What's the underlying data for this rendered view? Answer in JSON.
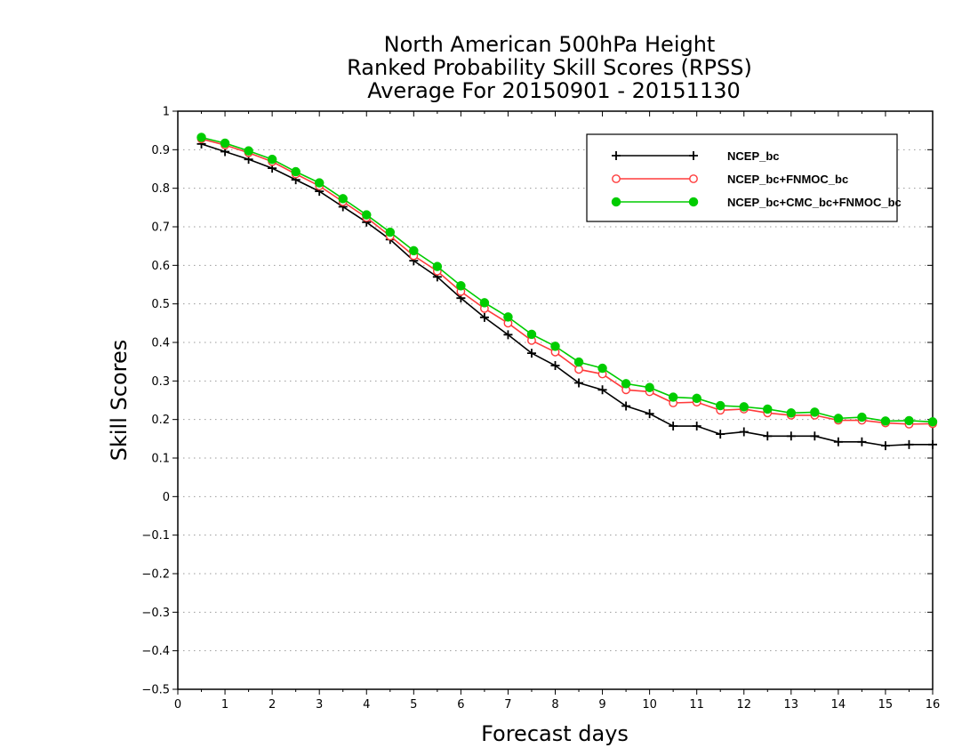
{
  "chart_data": {
    "type": "line",
    "title": [
      "North American 500hPa Height",
      "Ranked Probability Skill Scores (RPSS)",
      "Average For 20150901 - 20151130"
    ],
    "xlabel": "Forecast days",
    "ylabel": "Skill Scores",
    "xlim": [
      0,
      16
    ],
    "ylim": [
      -0.5,
      1
    ],
    "xticks": [
      "0",
      "1",
      "2",
      "3",
      "4",
      "5",
      "6",
      "7",
      "8",
      "9",
      "10",
      "11",
      "12",
      "13",
      "14",
      "15",
      "16"
    ],
    "yticks": [
      "−0.5",
      "−0.4",
      "−0.3",
      "−0.2",
      "−0.1",
      "0",
      "0.1",
      "0.2",
      "0.3",
      "0.4",
      "0.5",
      "0.6",
      "0.7",
      "0.8",
      "0.9",
      "1"
    ],
    "grid": "horizontal dotted",
    "legend_position": "top-right",
    "x": [
      0.5,
      1,
      1.5,
      2,
      2.5,
      3,
      3.5,
      4,
      4.5,
      5,
      5.5,
      6,
      6.5,
      7,
      7.5,
      8,
      8.5,
      9,
      9.5,
      10,
      10.5,
      11,
      11.5,
      12,
      12.5,
      13,
      13.5,
      14,
      14.5,
      15,
      15.5,
      16
    ],
    "series": [
      {
        "name": "NCEP_bc",
        "color": "#000000",
        "marker": "plus",
        "values": [
          0.915,
          0.895,
          0.875,
          0.852,
          0.822,
          0.792,
          0.752,
          0.712,
          0.667,
          0.612,
          0.57,
          0.515,
          0.465,
          0.42,
          0.372,
          0.34,
          0.295,
          0.277,
          0.235,
          0.215,
          0.183,
          0.183,
          0.162,
          0.168,
          0.157,
          0.157,
          0.157,
          0.142,
          0.142,
          0.132,
          0.135,
          0.135
        ]
      },
      {
        "name": "NCEP_bc+FNMOC_bc",
        "color": "#ff3b3b",
        "marker": "open-circle",
        "values": [
          0.928,
          0.912,
          0.892,
          0.869,
          0.837,
          0.806,
          0.765,
          0.724,
          0.676,
          0.625,
          0.585,
          0.532,
          0.488,
          0.45,
          0.405,
          0.375,
          0.33,
          0.318,
          0.277,
          0.272,
          0.243,
          0.245,
          0.224,
          0.227,
          0.217,
          0.211,
          0.211,
          0.198,
          0.198,
          0.191,
          0.188,
          0.189
        ]
      },
      {
        "name": "NCEP_bc+CMC_bc+FNMOC_bc",
        "color": "#00cc00",
        "marker": "filled-circle",
        "values": [
          0.932,
          0.917,
          0.897,
          0.875,
          0.843,
          0.814,
          0.773,
          0.731,
          0.686,
          0.638,
          0.597,
          0.547,
          0.503,
          0.466,
          0.421,
          0.39,
          0.349,
          0.333,
          0.293,
          0.283,
          0.258,
          0.255,
          0.236,
          0.233,
          0.227,
          0.217,
          0.219,
          0.203,
          0.206,
          0.196,
          0.197,
          0.194
        ]
      }
    ]
  }
}
